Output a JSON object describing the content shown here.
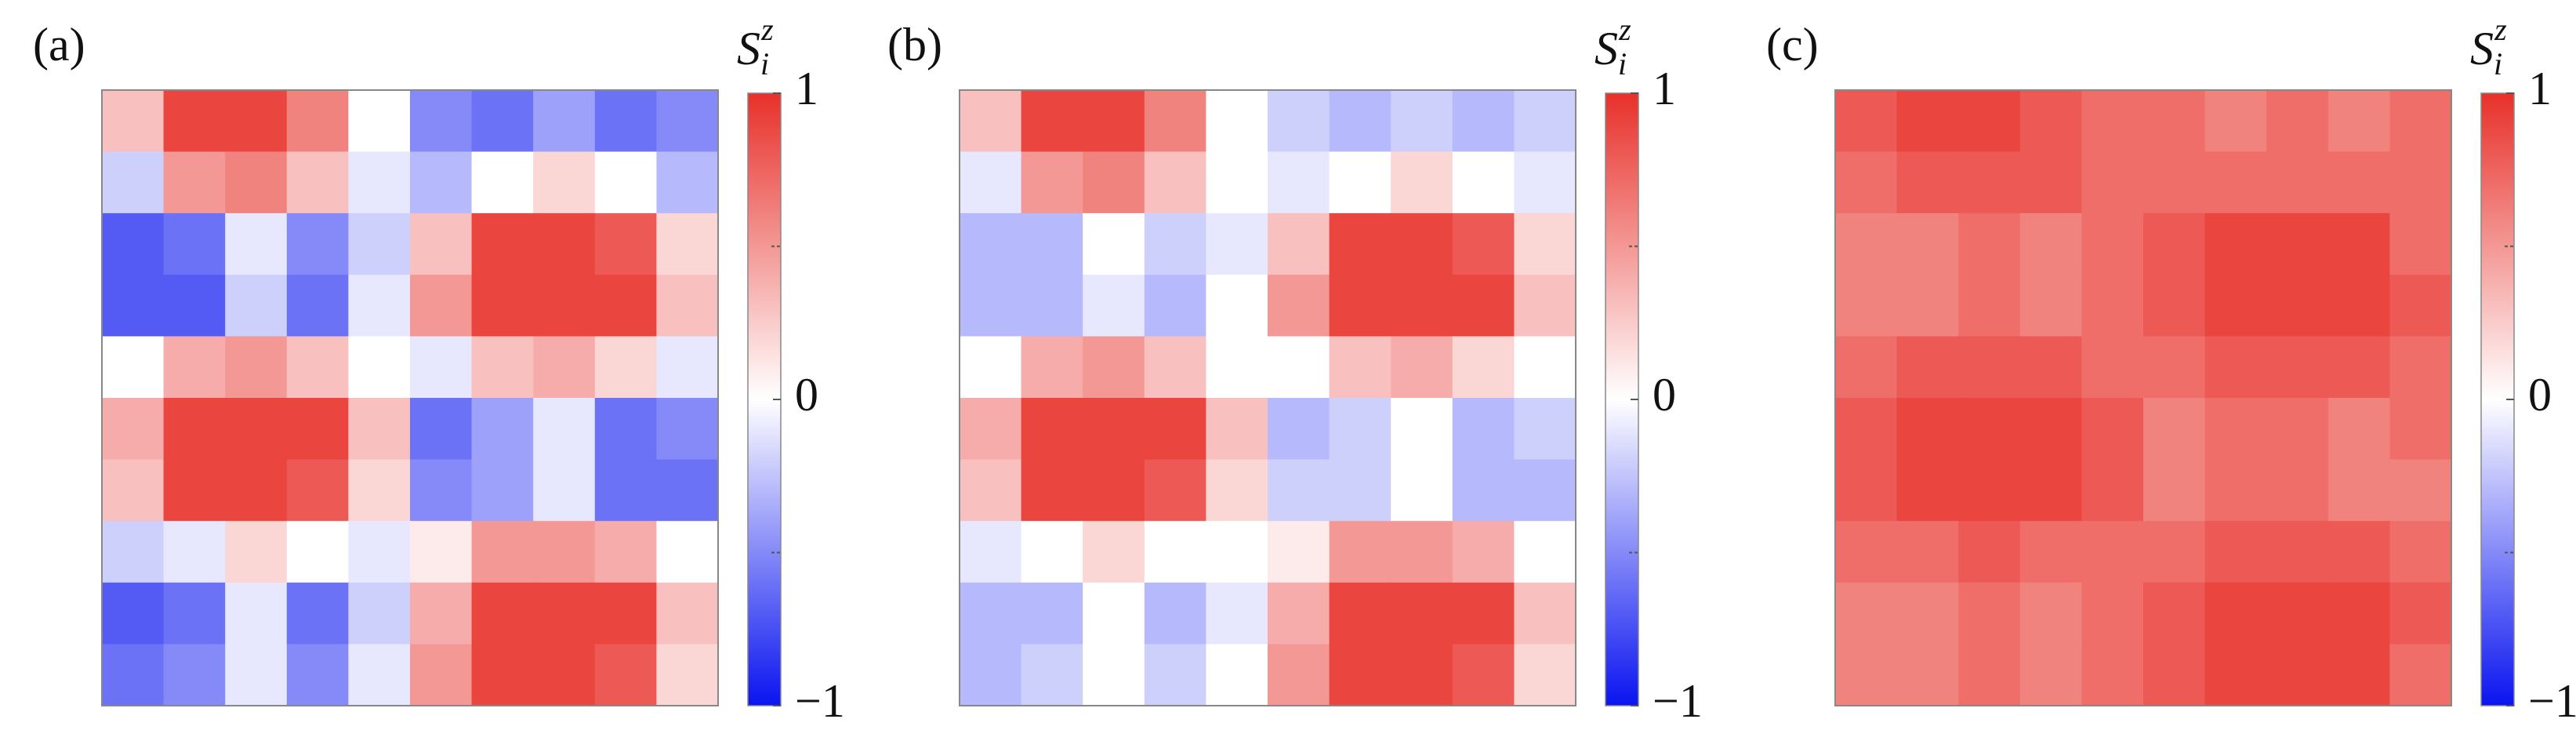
{
  "chart_data": [
    {
      "type": "heatmap",
      "panel_label": "(a)",
      "colorbar_label": {
        "symbol": "S",
        "subscript": "i",
        "superscript": "z"
      },
      "colors": [
        "#0a14f0",
        "#ffffff",
        "#e8302a"
      ],
      "clim": [
        -1,
        1
      ],
      "cticks": [
        {
          "value": -1,
          "label": "−1"
        },
        0,
        1
      ],
      "cminor_ticks": [
        -0.5,
        0.5
      ],
      "z": [
        [
          0.3,
          0.9,
          0.9,
          0.6,
          0,
          -0.5,
          -0.6,
          -0.4,
          -0.6,
          -0.5
        ],
        [
          -0.2,
          0.5,
          0.6,
          0.3,
          -0.1,
          -0.3,
          0,
          0.2,
          0,
          -0.3
        ],
        [
          -0.7,
          -0.6,
          -0.1,
          -0.5,
          -0.2,
          0.3,
          0.9,
          0.9,
          0.8,
          0.2
        ],
        [
          -0.7,
          -0.7,
          -0.2,
          -0.6,
          -0.1,
          0.5,
          0.9,
          0.9,
          0.9,
          0.3
        ],
        [
          0,
          0.4,
          0.5,
          0.3,
          0,
          -0.1,
          0.3,
          0.4,
          0.2,
          -0.1
        ],
        [
          0.4,
          0.9,
          0.9,
          0.9,
          0.3,
          -0.6,
          -0.4,
          -0.1,
          -0.6,
          -0.5
        ],
        [
          0.3,
          0.9,
          0.9,
          0.8,
          0.2,
          -0.5,
          -0.4,
          -0.1,
          -0.6,
          -0.6
        ],
        [
          -0.2,
          -0.1,
          0.2,
          0,
          -0.1,
          0.1,
          0.5,
          0.5,
          0.4,
          0
        ],
        [
          -0.7,
          -0.6,
          -0.1,
          -0.6,
          -0.2,
          0.4,
          0.9,
          0.9,
          0.9,
          0.3
        ],
        [
          -0.6,
          -0.5,
          -0.1,
          -0.5,
          -0.1,
          0.5,
          0.9,
          0.9,
          0.8,
          0.2
        ]
      ]
    },
    {
      "type": "heatmap",
      "panel_label": "(b)",
      "colorbar_label": {
        "symbol": "S",
        "subscript": "i",
        "superscript": "z"
      },
      "colors": [
        "#0a14f0",
        "#ffffff",
        "#e8302a"
      ],
      "clim": [
        -1,
        1
      ],
      "cticks": [
        {
          "value": -1,
          "label": "−1"
        },
        0,
        1
      ],
      "cminor_ticks": [
        -0.5,
        0.5
      ],
      "z": [
        [
          0.3,
          0.9,
          0.9,
          0.6,
          0,
          -0.2,
          -0.3,
          -0.2,
          -0.3,
          -0.2
        ],
        [
          -0.1,
          0.5,
          0.6,
          0.3,
          0,
          -0.1,
          0,
          0.2,
          0,
          -0.1
        ],
        [
          -0.3,
          -0.3,
          0,
          -0.2,
          -0.1,
          0.3,
          0.9,
          0.9,
          0.8,
          0.2
        ],
        [
          -0.3,
          -0.3,
          -0.1,
          -0.3,
          0,
          0.5,
          0.9,
          0.9,
          0.9,
          0.3
        ],
        [
          0,
          0.4,
          0.5,
          0.3,
          0,
          0,
          0.3,
          0.4,
          0.2,
          0
        ],
        [
          0.4,
          0.9,
          0.9,
          0.9,
          0.3,
          -0.3,
          -0.2,
          0,
          -0.3,
          -0.2
        ],
        [
          0.3,
          0.9,
          0.9,
          0.8,
          0.2,
          -0.2,
          -0.2,
          0,
          -0.3,
          -0.3
        ],
        [
          -0.1,
          0,
          0.2,
          0,
          0,
          0.1,
          0.5,
          0.5,
          0.4,
          0
        ],
        [
          -0.3,
          -0.3,
          0,
          -0.3,
          -0.1,
          0.4,
          0.9,
          0.9,
          0.9,
          0.3
        ],
        [
          -0.3,
          -0.2,
          0,
          -0.2,
          0,
          0.5,
          0.9,
          0.9,
          0.8,
          0.2
        ]
      ]
    },
    {
      "type": "heatmap",
      "panel_label": "(c)",
      "colorbar_label": {
        "symbol": "S",
        "subscript": "i",
        "superscript": "z"
      },
      "colors": [
        "#0a14f0",
        "#ffffff",
        "#e8302a"
      ],
      "clim": [
        -1,
        1
      ],
      "cticks": [
        {
          "value": -1,
          "label": "−1"
        },
        0,
        1
      ],
      "cminor_ticks": [
        -0.5,
        0.5
      ],
      "z": [
        [
          0.8,
          0.9,
          0.9,
          0.8,
          0.7,
          0.7,
          0.6,
          0.7,
          0.6,
          0.7
        ],
        [
          0.7,
          0.8,
          0.8,
          0.8,
          0.7,
          0.7,
          0.7,
          0.7,
          0.7,
          0.7
        ],
        [
          0.6,
          0.6,
          0.7,
          0.6,
          0.7,
          0.8,
          0.9,
          0.9,
          0.9,
          0.7
        ],
        [
          0.6,
          0.6,
          0.7,
          0.6,
          0.7,
          0.8,
          0.9,
          0.9,
          0.9,
          0.8
        ],
        [
          0.7,
          0.8,
          0.8,
          0.8,
          0.7,
          0.7,
          0.8,
          0.8,
          0.8,
          0.7
        ],
        [
          0.8,
          0.9,
          0.9,
          0.9,
          0.8,
          0.6,
          0.7,
          0.7,
          0.6,
          0.7
        ],
        [
          0.8,
          0.9,
          0.9,
          0.9,
          0.8,
          0.6,
          0.7,
          0.7,
          0.6,
          0.6
        ],
        [
          0.7,
          0.7,
          0.8,
          0.7,
          0.7,
          0.7,
          0.8,
          0.8,
          0.8,
          0.7
        ],
        [
          0.6,
          0.6,
          0.7,
          0.6,
          0.7,
          0.8,
          0.9,
          0.9,
          0.9,
          0.8
        ],
        [
          0.6,
          0.6,
          0.7,
          0.6,
          0.7,
          0.8,
          0.9,
          0.9,
          0.9,
          0.7
        ]
      ]
    }
  ]
}
